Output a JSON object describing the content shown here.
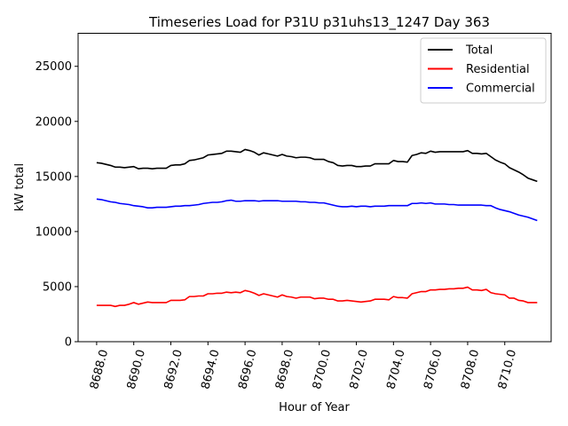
{
  "chart_data": {
    "type": "line",
    "title": "Timeseries Load for P31U p31uhs13_1247  Day 363",
    "xlabel": "Hour of Year",
    "ylabel": "kW total",
    "xlim": [
      8687.0,
      8712.5
    ],
    "ylim": [
      0,
      28000
    ],
    "x_ticks": [
      8688.0,
      8690.0,
      8692.0,
      8694.0,
      8696.0,
      8698.0,
      8700.0,
      8702.0,
      8704.0,
      8706.0,
      8708.0,
      8710.0
    ],
    "x_tick_labels": [
      "8688.0",
      "8690.0",
      "8692.0",
      "8694.0",
      "8696.0",
      "8698.0",
      "8700.0",
      "8702.0",
      "8704.0",
      "8706.0",
      "8708.0",
      "8710.0"
    ],
    "y_ticks": [
      0,
      5000,
      10000,
      15000,
      20000,
      25000
    ],
    "y_tick_labels": [
      "0",
      "5000",
      "10000",
      "15000",
      "20000",
      "25000"
    ],
    "legend_position": "top-right",
    "x": [
      8688.0,
      8688.25,
      8688.5,
      8688.75,
      8689.0,
      8689.25,
      8689.5,
      8689.75,
      8690.0,
      8690.25,
      8690.5,
      8690.75,
      8691.0,
      8691.25,
      8691.5,
      8691.75,
      8692.0,
      8692.25,
      8692.5,
      8692.75,
      8693.0,
      8693.25,
      8693.5,
      8693.75,
      8694.0,
      8694.25,
      8694.5,
      8694.75,
      8695.0,
      8695.25,
      8695.5,
      8695.75,
      8696.0,
      8696.25,
      8696.5,
      8696.75,
      8697.0,
      8697.25,
      8697.5,
      8697.75,
      8698.0,
      8698.25,
      8698.5,
      8698.75,
      8699.0,
      8699.25,
      8699.5,
      8699.75,
      8700.0,
      8700.25,
      8700.5,
      8700.75,
      8701.0,
      8701.25,
      8701.5,
      8701.75,
      8702.0,
      8702.25,
      8702.5,
      8702.75,
      8703.0,
      8703.25,
      8703.5,
      8703.75,
      8704.0,
      8704.25,
      8704.5,
      8704.75,
      8705.0,
      8705.25,
      8705.5,
      8705.75,
      8706.0,
      8706.25,
      8706.5,
      8706.75,
      8707.0,
      8707.25,
      8707.5,
      8707.75,
      8708.0,
      8708.25,
      8708.5,
      8708.75,
      8709.0,
      8709.25,
      8709.5,
      8709.75,
      8710.0,
      8710.25,
      8710.5,
      8710.75,
      8711.0,
      8711.25,
      8711.5,
      8711.75
    ],
    "series": [
      {
        "name": "Total",
        "color": "#000000",
        "values": [
          16250,
          16200,
          16100,
          16000,
          15850,
          15850,
          15800,
          15850,
          15900,
          15700,
          15750,
          15750,
          15700,
          15750,
          15750,
          15750,
          16000,
          16050,
          16050,
          16150,
          16450,
          16500,
          16600,
          16700,
          16950,
          17000,
          17050,
          17100,
          17300,
          17300,
          17250,
          17200,
          17450,
          17350,
          17200,
          16950,
          17150,
          17050,
          16950,
          16850,
          17000,
          16850,
          16800,
          16700,
          16750,
          16750,
          16700,
          16550,
          16550,
          16550,
          16350,
          16250,
          16000,
          15950,
          16000,
          16000,
          15900,
          15900,
          15950,
          15950,
          16150,
          16150,
          16150,
          16150,
          16450,
          16350,
          16350,
          16300,
          16900,
          17000,
          17150,
          17100,
          17300,
          17200,
          17250,
          17250,
          17250,
          17250,
          17250,
          17250,
          17350,
          17100,
          17100,
          17050,
          17100,
          16800,
          16500,
          16300,
          16150,
          15800,
          15600,
          15400,
          15150,
          14850,
          14700,
          14550
        ]
      },
      {
        "name": "Residential",
        "color": "#ff0000",
        "values": [
          3300,
          3300,
          3300,
          3300,
          3200,
          3300,
          3300,
          3400,
          3550,
          3400,
          3500,
          3600,
          3550,
          3550,
          3550,
          3550,
          3750,
          3750,
          3750,
          3800,
          4100,
          4100,
          4150,
          4150,
          4350,
          4350,
          4400,
          4400,
          4500,
          4450,
          4500,
          4450,
          4650,
          4550,
          4400,
          4200,
          4350,
          4250,
          4150,
          4050,
          4250,
          4100,
          4050,
          3950,
          4050,
          4050,
          4050,
          3900,
          3950,
          3950,
          3850,
          3850,
          3700,
          3700,
          3750,
          3700,
          3650,
          3600,
          3650,
          3700,
          3850,
          3850,
          3850,
          3800,
          4100,
          4000,
          4000,
          3950,
          4350,
          4450,
          4550,
          4550,
          4700,
          4700,
          4750,
          4750,
          4800,
          4800,
          4850,
          4850,
          4950,
          4700,
          4700,
          4650,
          4750,
          4450,
          4350,
          4300,
          4250,
          3950,
          3950,
          3750,
          3700,
          3550,
          3550,
          3550
        ]
      },
      {
        "name": "Commercial",
        "color": "#0000ff",
        "values": [
          12950,
          12900,
          12800,
          12700,
          12650,
          12550,
          12500,
          12450,
          12350,
          12300,
          12250,
          12150,
          12150,
          12200,
          12200,
          12200,
          12250,
          12300,
          12300,
          12350,
          12350,
          12400,
          12450,
          12550,
          12600,
          12650,
          12650,
          12700,
          12800,
          12850,
          12750,
          12750,
          12800,
          12800,
          12800,
          12750,
          12800,
          12800,
          12800,
          12800,
          12750,
          12750,
          12750,
          12750,
          12700,
          12700,
          12650,
          12650,
          12600,
          12600,
          12500,
          12400,
          12300,
          12250,
          12250,
          12300,
          12250,
          12300,
          12300,
          12250,
          12300,
          12300,
          12300,
          12350,
          12350,
          12350,
          12350,
          12350,
          12550,
          12550,
          12600,
          12550,
          12600,
          12500,
          12500,
          12500,
          12450,
          12450,
          12400,
          12400,
          12400,
          12400,
          12400,
          12400,
          12350,
          12350,
          12150,
          12000,
          11900,
          11800,
          11650,
          11500,
          11400,
          11300,
          11150,
          11000
        ]
      }
    ]
  }
}
